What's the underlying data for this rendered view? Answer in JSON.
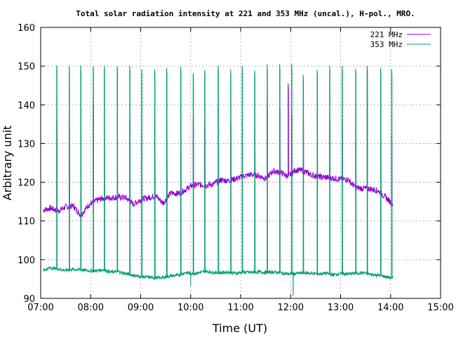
{
  "chart_data": {
    "type": "line",
    "title": "Total solar radiation intensity at 221 and 353 MHz (uncal.), H-pol., MRO.",
    "xlabel": "Time (UT)",
    "ylabel": "Arbitrary unit",
    "x_ticks": [
      "07:00",
      "08:00",
      "09:00",
      "10:00",
      "11:00",
      "12:00",
      "13:00",
      "14:00",
      "15:00"
    ],
    "y_ticks": [
      "90",
      "100",
      "110",
      "120",
      "130",
      "140",
      "150",
      "160"
    ],
    "xlim_hours": [
      7.0,
      15.0
    ],
    "ylim": [
      90,
      160
    ],
    "grid": true,
    "legend_position": "top-right",
    "series": [
      {
        "name": "221 MHz",
        "color": "#9400d3",
        "baseline": [
          [
            7.05,
            112.8
          ],
          [
            7.2,
            113.3
          ],
          [
            7.35,
            112.6
          ],
          [
            7.5,
            113.6
          ],
          [
            7.65,
            113.9
          ],
          [
            7.8,
            111.5
          ],
          [
            7.95,
            114.0
          ],
          [
            8.1,
            115.2
          ],
          [
            8.25,
            115.9
          ],
          [
            8.4,
            116.0
          ],
          [
            8.55,
            116.2
          ],
          [
            8.7,
            116.0
          ],
          [
            8.85,
            114.3
          ],
          [
            9.0,
            115.5
          ],
          [
            9.15,
            116.0
          ],
          [
            9.3,
            116.5
          ],
          [
            9.45,
            114.6
          ],
          [
            9.6,
            117.2
          ],
          [
            9.75,
            117.1
          ],
          [
            9.9,
            118.1
          ],
          [
            10.0,
            119.0
          ],
          [
            10.15,
            119.4
          ],
          [
            10.3,
            119.2
          ],
          [
            10.45,
            119.5
          ],
          [
            10.6,
            120.6
          ],
          [
            10.75,
            120.4
          ],
          [
            10.9,
            120.9
          ],
          [
            11.05,
            121.5
          ],
          [
            11.2,
            122.0
          ],
          [
            11.35,
            121.7
          ],
          [
            11.5,
            121.0
          ],
          [
            11.65,
            122.9
          ],
          [
            11.8,
            122.5
          ],
          [
            11.95,
            121.5
          ],
          [
            12.1,
            123.2
          ],
          [
            12.25,
            123.0
          ],
          [
            12.4,
            122.0
          ],
          [
            12.55,
            121.4
          ],
          [
            12.7,
            121.3
          ],
          [
            12.85,
            121.0
          ],
          [
            13.0,
            120.8
          ],
          [
            13.15,
            120.7
          ],
          [
            13.3,
            118.6
          ],
          [
            13.45,
            118.4
          ],
          [
            13.6,
            118.3
          ],
          [
            13.75,
            117.8
          ],
          [
            13.9,
            116.1
          ],
          [
            14.05,
            114.3
          ]
        ],
        "spike_peak": [
          [
            7.32,
            136.3
          ],
          [
            7.57,
            136.0
          ],
          [
            7.8,
            140.0
          ],
          [
            8.05,
            141.0
          ],
          [
            8.27,
            135.8
          ],
          [
            8.53,
            134.5
          ],
          [
            8.78,
            136.0
          ],
          [
            9.02,
            133.3
          ],
          [
            9.28,
            135.0
          ],
          [
            9.52,
            136.0
          ],
          [
            9.8,
            139.6
          ],
          [
            10.05,
            136.4
          ],
          [
            10.28,
            135.2
          ],
          [
            10.55,
            140.5
          ],
          [
            10.8,
            135.8
          ],
          [
            11.03,
            136.3
          ],
          [
            11.28,
            133.8
          ],
          [
            11.53,
            141.0
          ],
          [
            11.78,
            140.0
          ],
          [
            11.95,
            145.5
          ],
          [
            12.02,
            138.0
          ],
          [
            12.25,
            136.6
          ],
          [
            12.53,
            136.6
          ],
          [
            12.78,
            136.6
          ],
          [
            13.03,
            136.4
          ],
          [
            13.3,
            133.5
          ],
          [
            13.53,
            150.0
          ],
          [
            13.8,
            132.8
          ],
          [
            14.02,
            132.0
          ]
        ]
      },
      {
        "name": "353 MHz",
        "color": "#009e73",
        "baseline": [
          [
            7.05,
            97.3
          ],
          [
            7.2,
            97.9
          ],
          [
            7.35,
            97.6
          ],
          [
            7.5,
            97.2
          ],
          [
            7.65,
            97.5
          ],
          [
            7.8,
            97.4
          ],
          [
            7.95,
            97.2
          ],
          [
            8.1,
            97.1
          ],
          [
            8.25,
            97.4
          ],
          [
            8.4,
            96.8
          ],
          [
            8.55,
            96.9
          ],
          [
            8.7,
            96.4
          ],
          [
            8.85,
            96.0
          ],
          [
            9.0,
            95.6
          ],
          [
            9.15,
            95.5
          ],
          [
            9.3,
            95.3
          ],
          [
            9.45,
            95.4
          ],
          [
            9.6,
            95.8
          ],
          [
            9.75,
            96.0
          ],
          [
            9.9,
            96.7
          ],
          [
            10.0,
            96.4
          ],
          [
            10.15,
            96.6
          ],
          [
            10.3,
            97.0
          ],
          [
            10.45,
            96.7
          ],
          [
            10.6,
            96.6
          ],
          [
            10.75,
            96.8
          ],
          [
            10.9,
            96.5
          ],
          [
            11.05,
            96.8
          ],
          [
            11.2,
            96.7
          ],
          [
            11.35,
            96.8
          ],
          [
            11.5,
            96.7
          ],
          [
            11.65,
            96.8
          ],
          [
            11.8,
            96.6
          ],
          [
            11.95,
            96.3
          ],
          [
            12.1,
            96.4
          ],
          [
            12.25,
            96.6
          ],
          [
            12.4,
            96.5
          ],
          [
            12.55,
            96.3
          ],
          [
            12.7,
            96.5
          ],
          [
            12.85,
            96.1
          ],
          [
            13.0,
            96.4
          ],
          [
            13.15,
            96.3
          ],
          [
            13.3,
            96.5
          ],
          [
            13.45,
            96.6
          ],
          [
            13.6,
            96.2
          ],
          [
            13.75,
            96.0
          ],
          [
            13.9,
            95.6
          ],
          [
            14.05,
            95.2
          ]
        ],
        "spike_peak": [
          [
            7.32,
            150.2
          ],
          [
            7.57,
            150.0
          ],
          [
            7.8,
            150.2
          ],
          [
            8.05,
            150.0
          ],
          [
            8.27,
            150.0
          ],
          [
            8.53,
            150.0
          ],
          [
            8.78,
            150.1
          ],
          [
            9.02,
            149.2
          ],
          [
            9.28,
            149.2
          ],
          [
            9.52,
            149.5
          ],
          [
            9.8,
            149.8
          ],
          [
            10.05,
            148.2
          ],
          [
            10.28,
            149.0
          ],
          [
            10.55,
            150.1
          ],
          [
            10.8,
            149.2
          ],
          [
            11.03,
            150.0
          ],
          [
            11.28,
            148.9
          ],
          [
            11.53,
            150.4
          ],
          [
            11.78,
            150.5
          ],
          [
            12.02,
            150.6
          ],
          [
            12.25,
            147.8
          ],
          [
            12.53,
            149.0
          ],
          [
            12.78,
            150.1
          ],
          [
            13.03,
            150.0
          ],
          [
            13.3,
            149.3
          ],
          [
            13.53,
            149.8
          ],
          [
            13.8,
            149.5
          ],
          [
            14.02,
            149.2
          ]
        ],
        "dips": [
          [
            10.0,
            93.2
          ],
          [
            12.05,
            90.6
          ]
        ]
      }
    ]
  }
}
